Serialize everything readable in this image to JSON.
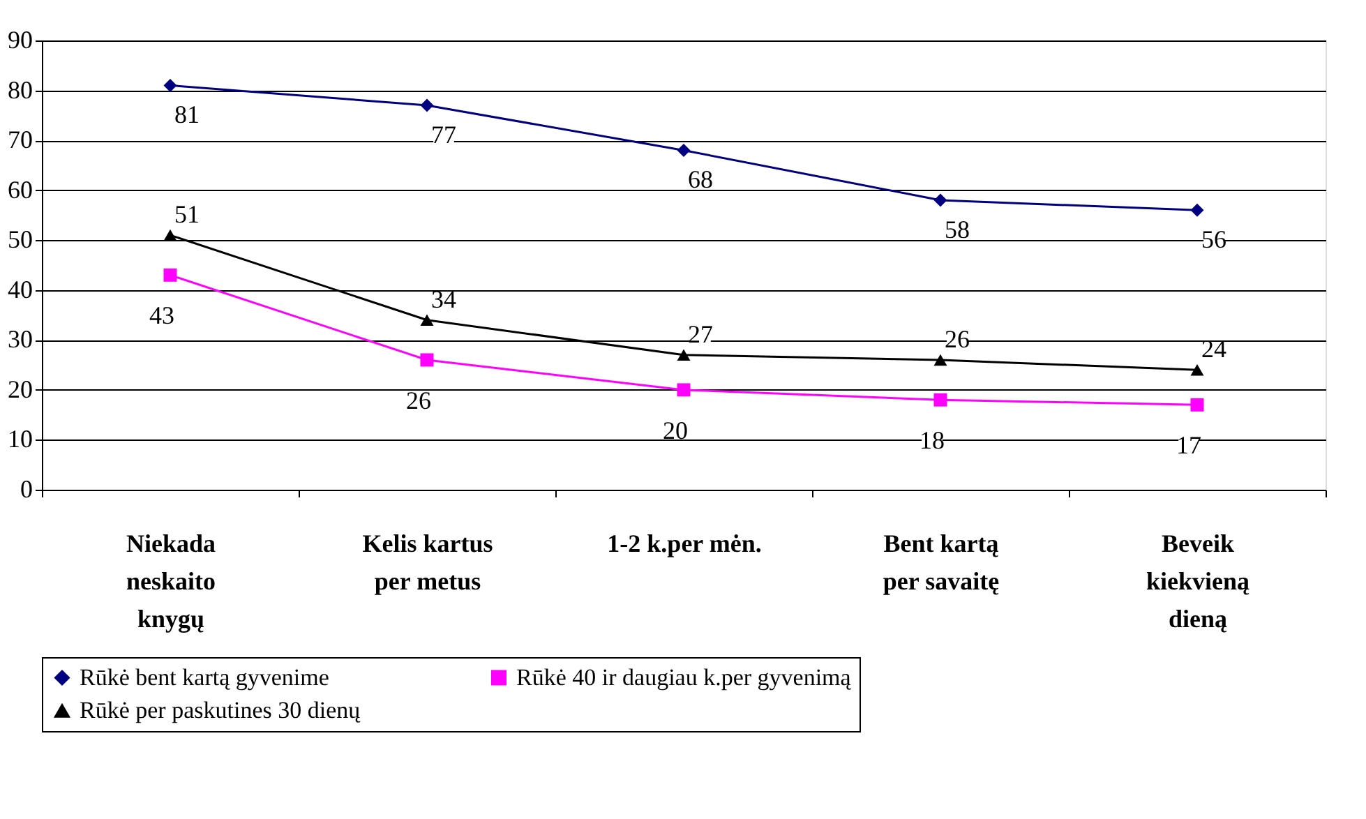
{
  "chart_data": {
    "type": "line",
    "categories": [
      "Niekada\nneskaito\nknygų",
      "Kelis kartus\nper metus",
      "1-2 k.per mėn.",
      "Bent kartą\nper savaitę",
      "Beveik\nkiekvieną\ndieną"
    ],
    "series": [
      {
        "name": "Rūkė bent kartą gyvenime",
        "color": "#000080",
        "marker": "diamond",
        "values": [
          81,
          77,
          68,
          58,
          56
        ]
      },
      {
        "name": "Rūkė 40 ir daugiau k.per gyvenimą",
        "color": "#ff00ff",
        "marker": "square",
        "values": [
          43,
          26,
          20,
          18,
          17
        ]
      },
      {
        "name": "Rūkė per paskutines 30 dienų",
        "color": "#000000",
        "marker": "triangle",
        "values": [
          51,
          34,
          27,
          26,
          24
        ]
      }
    ],
    "ylim": [
      0,
      90
    ],
    "yticks": [
      0,
      10,
      20,
      30,
      40,
      50,
      60,
      70,
      80,
      90
    ],
    "grid": "y",
    "legend": "bottom",
    "data_labels": true
  }
}
